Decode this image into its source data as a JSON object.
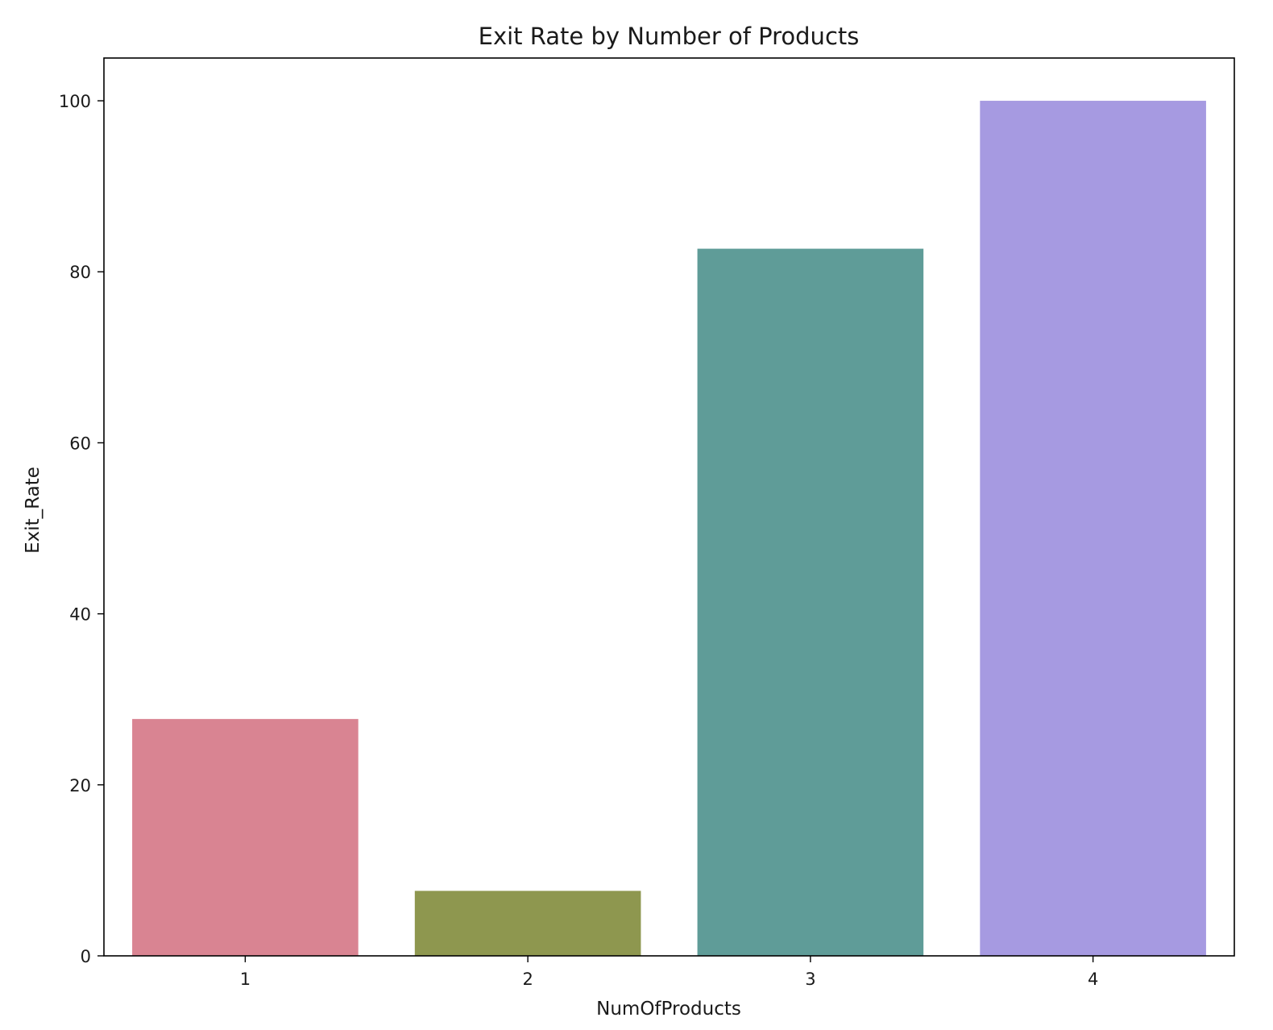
{
  "chart_data": {
    "type": "bar",
    "title": "Exit Rate by Number of Products",
    "xlabel": "NumOfProducts",
    "ylabel": "Exit_Rate",
    "categories": [
      "1",
      "2",
      "3",
      "4"
    ],
    "values": [
      27.7,
      7.6,
      82.7,
      100.0
    ],
    "colors": [
      "#d98492",
      "#8e974f",
      "#5f9c98",
      "#a69ae1"
    ],
    "ylim": [
      0,
      105
    ],
    "yticks": [
      0,
      20,
      40,
      60,
      80,
      100
    ],
    "grid": false,
    "legend": "none"
  }
}
